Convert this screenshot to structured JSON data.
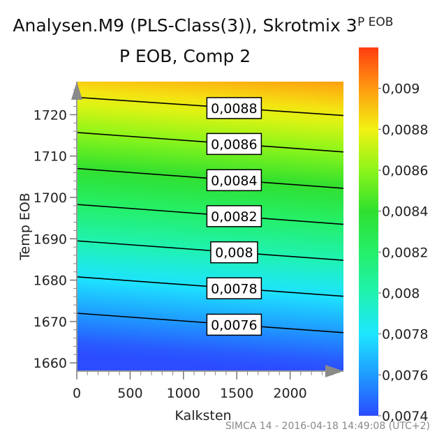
{
  "chart_data": {
    "type": "contour",
    "title": "Analysen.M9 (PLS-Class(3)), Skrotmix 3",
    "subtitle": "P EOB, Comp 2",
    "xlabel": "Kalksten",
    "ylabel": "Temp EOB",
    "xlim": [
      0,
      2500
    ],
    "ylim": [
      1658,
      1728
    ],
    "x_ticks": [
      "0",
      "500",
      "1000",
      "1500",
      "2000"
    ],
    "x_tick_values": [
      0,
      500,
      1000,
      1500,
      2000
    ],
    "y_ticks": [
      "1660",
      "1670",
      "1680",
      "1690",
      "1700",
      "1710",
      "1720"
    ],
    "y_tick_values": [
      1660,
      1670,
      1680,
      1690,
      1700,
      1710,
      1720
    ],
    "colorbar": {
      "title": "P EOB",
      "min": 0.0074,
      "max": 0.0092,
      "tick_labels": [
        "0,009",
        "0,0088",
        "0,0086",
        "0,0084",
        "0,0082",
        "0,008",
        "0,0078",
        "0,0076",
        "0,0074"
      ],
      "tick_values": [
        0.009,
        0.0088,
        0.0086,
        0.0084,
        0.0082,
        0.008,
        0.0078,
        0.0076,
        0.0074
      ]
    },
    "contour_lines": [
      {
        "level": 0.0088,
        "label": "0,0088",
        "y_at_x0": 1724.2,
        "y_at_xmax": 1719.8
      },
      {
        "level": 0.0086,
        "label": "0,0086",
        "y_at_x0": 1715.7,
        "y_at_xmax": 1711.0
      },
      {
        "level": 0.0084,
        "label": "0,0084",
        "y_at_x0": 1707.0,
        "y_at_xmax": 1702.2
      },
      {
        "level": 0.0082,
        "label": "0,0082",
        "y_at_x0": 1698.3,
        "y_at_xmax": 1693.5
      },
      {
        "level": 0.008,
        "label": "0,008",
        "y_at_x0": 1689.5,
        "y_at_xmax": 1684.8
      },
      {
        "level": 0.0078,
        "label": "0,0078",
        "y_at_x0": 1680.8,
        "y_at_xmax": 1676.1
      },
      {
        "level": 0.0076,
        "label": "0,0076",
        "y_at_x0": 1672.0,
        "y_at_xmax": 1667.3
      }
    ],
    "contour_label_x": 1475,
    "color_stops": [
      {
        "value": 0.0074,
        "color": "#2b4cff"
      },
      {
        "value": 0.0076,
        "color": "#1e9bff"
      },
      {
        "value": 0.0078,
        "color": "#1ee6ff"
      },
      {
        "value": 0.008,
        "color": "#1ff2b0"
      },
      {
        "value": 0.0082,
        "color": "#25ef6a"
      },
      {
        "value": 0.0084,
        "color": "#2fe02f"
      },
      {
        "value": 0.0086,
        "color": "#8cf51a"
      },
      {
        "value": 0.0088,
        "color": "#f2f212"
      },
      {
        "value": 0.009,
        "color": "#ff9a10"
      },
      {
        "value": 0.0092,
        "color": "#ff3c10"
      }
    ]
  },
  "footer_text": "SIMCA 14 - 2016-04-18 14:49:08 (UTC+2)"
}
